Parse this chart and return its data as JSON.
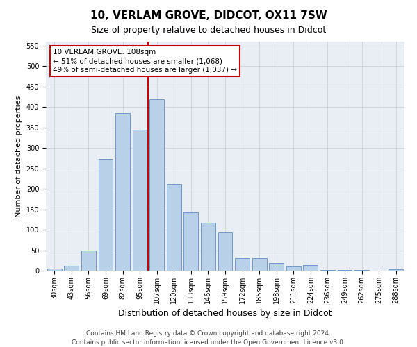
{
  "title": "10, VERLAM GROVE, DIDCOT, OX11 7SW",
  "subtitle": "Size of property relative to detached houses in Didcot",
  "xlabel": "Distribution of detached houses by size in Didcot",
  "ylabel": "Number of detached properties",
  "categories": [
    "30sqm",
    "43sqm",
    "56sqm",
    "69sqm",
    "82sqm",
    "95sqm",
    "107sqm",
    "120sqm",
    "133sqm",
    "146sqm",
    "159sqm",
    "172sqm",
    "185sqm",
    "198sqm",
    "211sqm",
    "224sqm",
    "236sqm",
    "249sqm",
    "262sqm",
    "275sqm",
    "288sqm"
  ],
  "values": [
    5,
    12,
    50,
    273,
    385,
    345,
    420,
    212,
    143,
    117,
    93,
    31,
    30,
    18,
    10,
    13,
    2,
    1,
    2,
    0,
    3
  ],
  "bar_color": "#b8d0e8",
  "bar_edge_color": "#6090c0",
  "bg_color": "#e8eef4",
  "annotation_box_text": "10 VERLAM GROVE: 108sqm\n← 51% of detached houses are smaller (1,068)\n49% of semi-detached houses are larger (1,037) →",
  "annotation_box_color": "#ffffff",
  "annotation_box_edge_color": "#cc0000",
  "vline_color": "#cc0000",
  "footer_line1": "Contains HM Land Registry data © Crown copyright and database right 2024.",
  "footer_line2": "Contains public sector information licensed under the Open Government Licence v3.0.",
  "ylim": [
    0,
    560
  ],
  "yticks": [
    0,
    50,
    100,
    150,
    200,
    250,
    300,
    350,
    400,
    450,
    500,
    550
  ],
  "title_fontsize": 11,
  "subtitle_fontsize": 9,
  "xlabel_fontsize": 9,
  "ylabel_fontsize": 8,
  "tick_fontsize": 7,
  "annot_fontsize": 7.5,
  "footer_fontsize": 6.5
}
